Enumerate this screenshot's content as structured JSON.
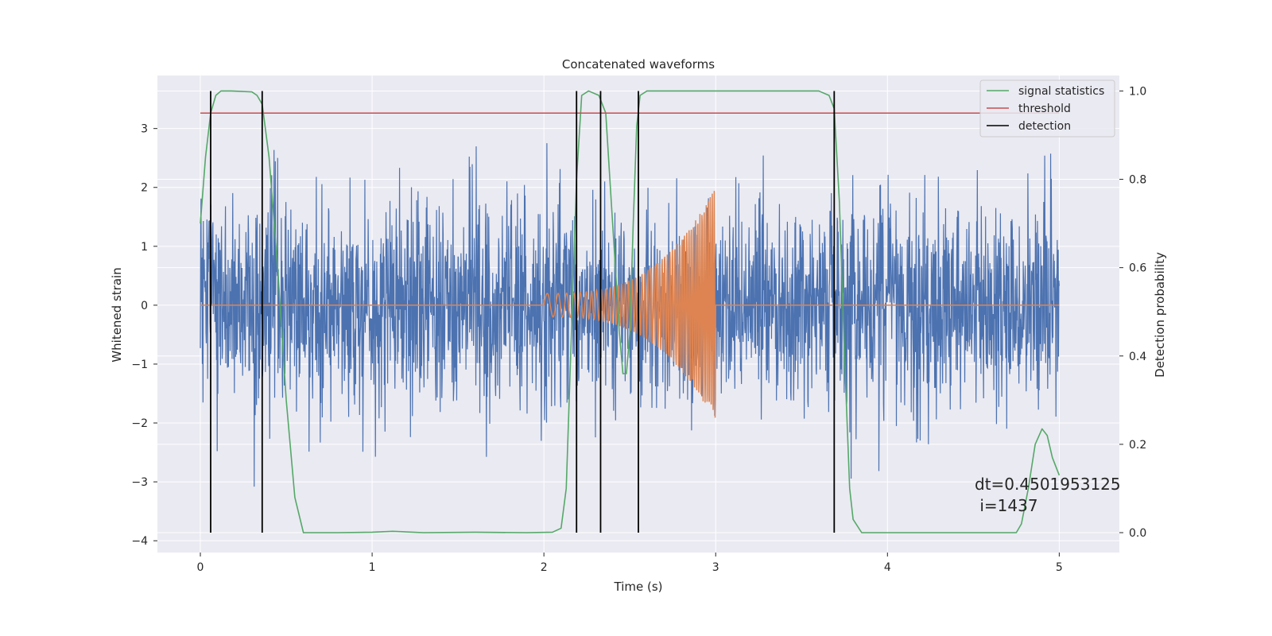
{
  "chart_data": {
    "type": "line",
    "title": "Concatenated waveforms",
    "xlabel": "Time (s)",
    "ylabel": "Whitened strain",
    "y2label": "Detection probability",
    "xlim": [
      -0.25,
      5.35
    ],
    "ylim": [
      -4.2,
      3.9
    ],
    "y2lim": [
      -0.045,
      1.035
    ],
    "x_ticks": [
      0,
      1,
      2,
      3,
      4,
      5
    ],
    "x_tick_labels": [
      "0",
      "1",
      "2",
      "3",
      "4",
      "5"
    ],
    "y_ticks": [
      -4,
      -3,
      -2,
      -1,
      0,
      1,
      2,
      3
    ],
    "y_tick_labels": [
      "−4",
      "−3",
      "−2",
      "−1",
      "0",
      "1",
      "2",
      "3"
    ],
    "y2_ticks": [
      0.0,
      0.2,
      0.4,
      0.6,
      0.8,
      1.0
    ],
    "y2_tick_labels": [
      "0.0",
      "0.2",
      "0.4",
      "0.6",
      "0.8",
      "1.0"
    ],
    "grid": true,
    "legend_position": "top-right",
    "legend": [
      {
        "label": "signal statistics",
        "color": "#55a868"
      },
      {
        "label": "threshold",
        "color": "#c44e52"
      },
      {
        "label": "detection",
        "color": "#000000"
      }
    ],
    "series": [
      {
        "role": "noise",
        "color": "#4c72b0",
        "x_range": [
          0,
          5
        ],
        "noise_std": 0.85,
        "max": 3.55,
        "min": -3.9
      },
      {
        "role": "injected_signal",
        "color": "#dd8452",
        "x_range": [
          0,
          5
        ],
        "chirp_start": 2.0,
        "chirp_end": 3.0,
        "peak_amplitude": 2.0
      },
      {
        "role": "signal_statistics",
        "axis": "right",
        "color": "#55a868",
        "x": [
          0,
          0.03,
          0.06,
          0.09,
          0.12,
          0.18,
          0.3,
          0.33,
          0.36,
          0.4,
          0.45,
          0.5,
          0.55,
          0.6,
          0.8,
          1.0,
          1.12,
          1.3,
          1.6,
          1.9,
          2.05,
          2.1,
          2.13,
          2.16,
          2.19,
          2.22,
          2.26,
          2.32,
          2.36,
          2.4,
          2.44,
          2.46,
          2.48,
          2.5,
          2.52,
          2.54,
          2.56,
          2.6,
          2.8,
          3.0,
          3.6,
          3.66,
          3.69,
          3.72,
          3.75,
          3.78,
          3.8,
          3.85,
          3.9,
          4.0,
          4.5,
          4.75,
          4.78,
          4.82,
          4.86,
          4.9,
          4.93,
          4.96,
          5.0
        ],
        "y": [
          0.7,
          0.85,
          0.95,
          0.99,
          1.0,
          1.0,
          0.998,
          0.99,
          0.97,
          0.85,
          0.6,
          0.3,
          0.08,
          0.0,
          0.0,
          0.001,
          0.003,
          0.0,
          0.001,
          0.0,
          0.001,
          0.01,
          0.1,
          0.45,
          0.8,
          0.99,
          1.0,
          0.99,
          0.95,
          0.7,
          0.45,
          0.36,
          0.36,
          0.45,
          0.7,
          0.92,
          0.99,
          1.0,
          1.0,
          1.0,
          1.0,
          0.99,
          0.96,
          0.75,
          0.4,
          0.1,
          0.03,
          0.0,
          0.0,
          0.0,
          0.0,
          0.0,
          0.02,
          0.1,
          0.2,
          0.235,
          0.22,
          0.17,
          0.13
        ]
      },
      {
        "role": "threshold",
        "axis": "right",
        "color": "#c44e52",
        "x": [
          0,
          5
        ],
        "y": [
          0.95,
          0.95
        ]
      }
    ],
    "detections": [
      0.06,
      0.36,
      2.19,
      2.33,
      2.55,
      3.69
    ],
    "detection_color": "#000000",
    "annotation": {
      "line1": "dt=0.4501953125",
      "line2": " i=1437",
      "x": 4.5,
      "y": -3.3
    }
  }
}
